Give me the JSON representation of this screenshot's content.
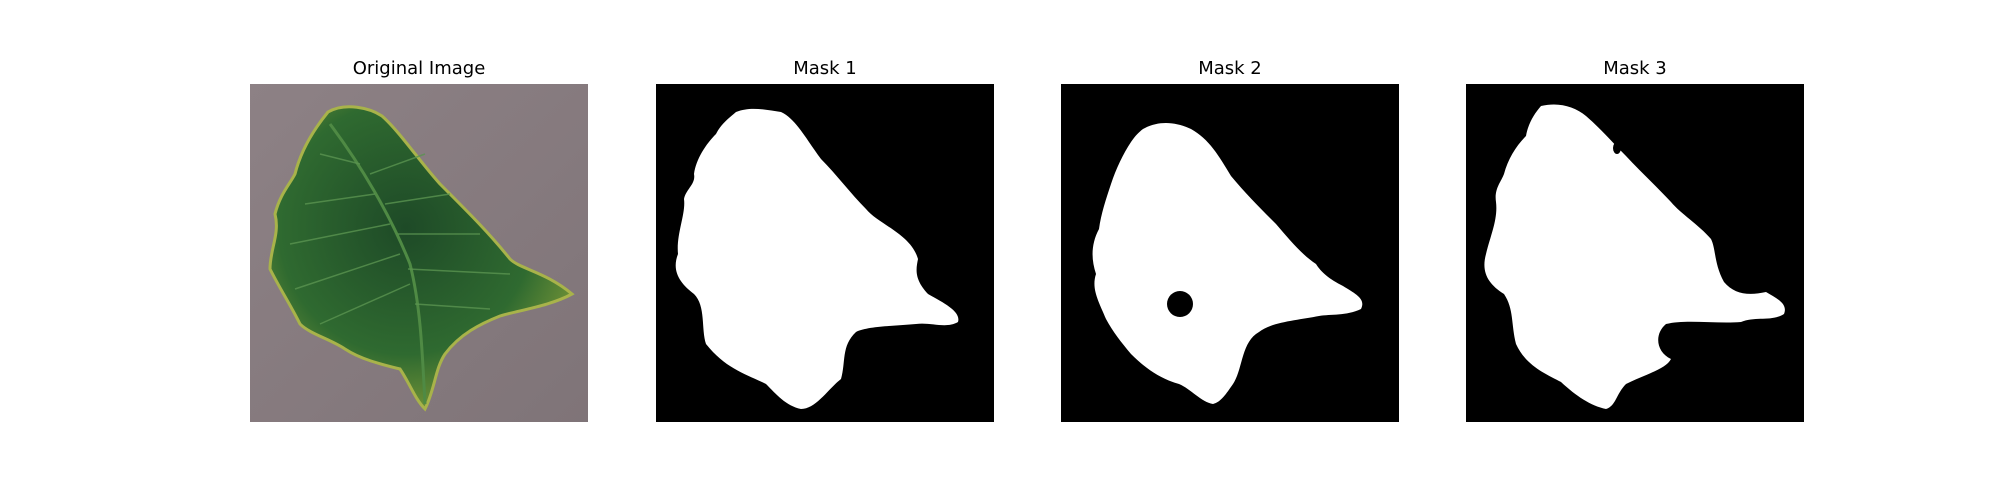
{
  "panels": [
    {
      "title": "Original Image"
    },
    {
      "title": "Mask 1"
    },
    {
      "title": "Mask 2"
    },
    {
      "title": "Mask 3"
    }
  ],
  "colors": {
    "background": "#ffffff",
    "mask_background": "#000000",
    "mask_foreground": "#ffffff",
    "photo_background": "#8a7e82",
    "leaf_dark": "#1f4a26",
    "leaf_mid": "#3d7a35",
    "leaf_edge": "#9aa83a"
  }
}
